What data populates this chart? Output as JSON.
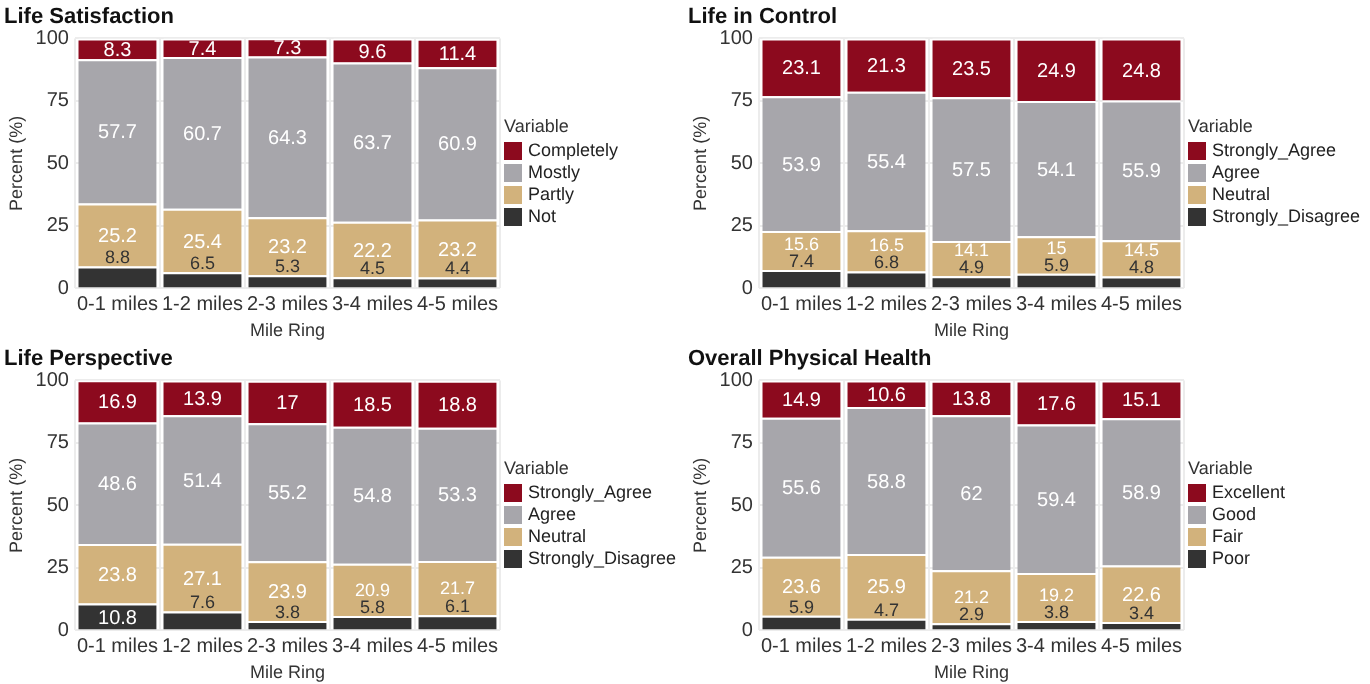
{
  "chart_data": [
    {
      "type": "bar",
      "title": "Life Satisfaction",
      "xlabel": "Mile Ring",
      "ylabel": "Percent (%)",
      "legend_title": "Variable",
      "categories": [
        "0-1 miles",
        "1-2 miles",
        "2-3 miles",
        "3-4 miles",
        "4-5 miles"
      ],
      "stacked": true,
      "data_labels": true,
      "grid": true,
      "legend": "right",
      "ylim": [
        0,
        100
      ],
      "yticks": [
        0,
        25,
        50,
        75,
        100
      ],
      "series": [
        {
          "name": "Not",
          "color": "#333333",
          "values": [
            8.8,
            6.5,
            5.3,
            4.5,
            4.4
          ]
        },
        {
          "name": "Partly",
          "color": "#d2b27c",
          "values": [
            25.2,
            25.4,
            23.2,
            22.2,
            23.2
          ]
        },
        {
          "name": "Mostly",
          "color": "#a7a6ab",
          "values": [
            57.7,
            60.7,
            64.3,
            63.7,
            60.9
          ]
        },
        {
          "name": "Completely",
          "color": "#8c0a1e",
          "values": [
            8.3,
            7.4,
            7.3,
            9.6,
            11.4
          ]
        }
      ]
    },
    {
      "type": "bar",
      "title": "Life in Control",
      "xlabel": "Mile Ring",
      "ylabel": "Percent (%)",
      "legend_title": "Variable",
      "categories": [
        "0-1 miles",
        "1-2 miles",
        "2-3 miles",
        "3-4 miles",
        "4-5 miles"
      ],
      "stacked": true,
      "data_labels": true,
      "grid": true,
      "legend": "right",
      "ylim": [
        0,
        100
      ],
      "yticks": [
        0,
        25,
        50,
        75,
        100
      ],
      "series": [
        {
          "name": "Strongly_Disagree",
          "color": "#333333",
          "values": [
            7.4,
            6.8,
            4.9,
            5.9,
            4.8
          ]
        },
        {
          "name": "Neutral",
          "color": "#d2b27c",
          "values": [
            15.6,
            16.5,
            14.1,
            15,
            14.5
          ]
        },
        {
          "name": "Agree",
          "color": "#a7a6ab",
          "values": [
            53.9,
            55.4,
            57.5,
            54.1,
            55.9
          ]
        },
        {
          "name": "Strongly_Agree",
          "color": "#8c0a1e",
          "values": [
            23.1,
            21.3,
            23.5,
            24.9,
            24.8
          ]
        }
      ]
    },
    {
      "type": "bar",
      "title": "Life Perspective",
      "xlabel": "Mile Ring",
      "ylabel": "Percent (%)",
      "legend_title": "Variable",
      "categories": [
        "0-1 miles",
        "1-2 miles",
        "2-3 miles",
        "3-4 miles",
        "4-5 miles"
      ],
      "stacked": true,
      "data_labels": true,
      "grid": true,
      "legend": "right",
      "ylim": [
        0,
        100
      ],
      "yticks": [
        0,
        25,
        50,
        75,
        100
      ],
      "series": [
        {
          "name": "Strongly_Disagree",
          "color": "#333333",
          "values": [
            10.8,
            7.6,
            3.8,
            5.8,
            6.1
          ]
        },
        {
          "name": "Neutral",
          "color": "#d2b27c",
          "values": [
            23.8,
            27.1,
            23.9,
            20.9,
            21.7
          ]
        },
        {
          "name": "Agree",
          "color": "#a7a6ab",
          "values": [
            48.6,
            51.4,
            55.2,
            54.8,
            53.3
          ]
        },
        {
          "name": "Strongly_Agree",
          "color": "#8c0a1e",
          "values": [
            16.9,
            13.9,
            17,
            18.5,
            18.8
          ]
        }
      ]
    },
    {
      "type": "bar",
      "title": "Overall Physical Health",
      "xlabel": "Mile Ring",
      "ylabel": "Percent (%)",
      "legend_title": "Variable",
      "categories": [
        "0-1 miles",
        "1-2 miles",
        "2-3 miles",
        "3-4 miles",
        "4-5 miles"
      ],
      "stacked": true,
      "data_labels": true,
      "grid": true,
      "legend": "right",
      "ylim": [
        0,
        100
      ],
      "yticks": [
        0,
        25,
        50,
        75,
        100
      ],
      "series": [
        {
          "name": "Poor",
          "color": "#333333",
          "values": [
            5.9,
            4.7,
            2.9,
            3.8,
            3.4
          ]
        },
        {
          "name": "Fair",
          "color": "#d2b27c",
          "values": [
            23.6,
            25.9,
            21.2,
            19.2,
            22.6
          ]
        },
        {
          "name": "Good",
          "color": "#a7a6ab",
          "values": [
            55.6,
            58.8,
            62,
            59.4,
            58.9
          ]
        },
        {
          "name": "Excellent",
          "color": "#8c0a1e",
          "values": [
            14.9,
            10.6,
            13.8,
            17.6,
            15.1
          ]
        }
      ]
    }
  ]
}
